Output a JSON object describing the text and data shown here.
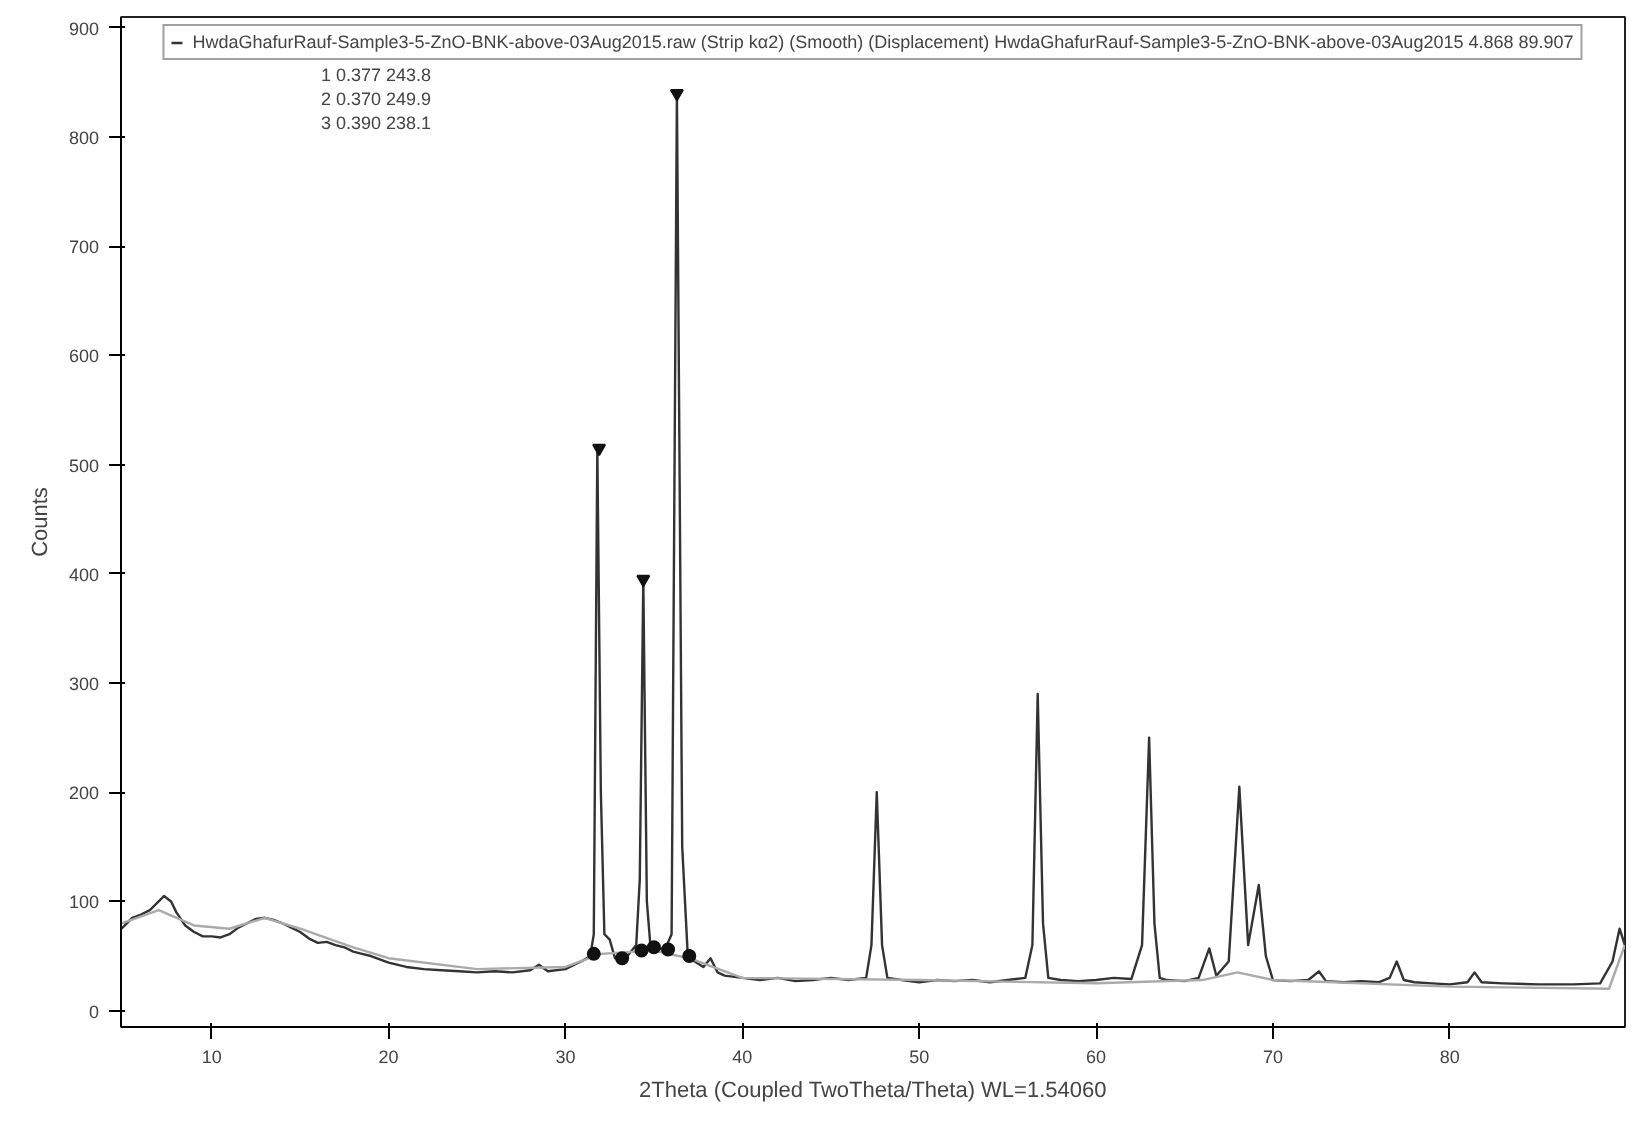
{
  "chart_data": {
    "type": "line",
    "xlabel": "2Theta (Coupled TwoTheta/Theta) WL=1.54060",
    "ylabel": "Counts",
    "xlim": [
      4.868,
      89.907
    ],
    "ylim": [
      -15,
      910
    ],
    "xticks": [
      10,
      20,
      30,
      40,
      50,
      60,
      70,
      80
    ],
    "yticks": [
      0,
      100,
      200,
      300,
      400,
      500,
      600,
      700,
      800,
      900
    ],
    "grid": false,
    "legend": "top",
    "annotations": [
      "1 0.377 243.8",
      "2 0.370 249.9",
      "3 0.390 238.1"
    ],
    "series": [
      {
        "name": "HwdaGhafurRauf-Sample3-5-ZnO-BNK-above-03Aug2015.raw (Strip kα2) (Smooth) (Displacement) HwdaGhafurRauf-Sample3-5-ZnO-BNK-above-03Aug2015 4.868 89.907",
        "color": "#333333",
        "x": [
          4.9,
          5.5,
          6,
          6.5,
          7,
          7.3,
          7.7,
          8,
          8.5,
          9,
          9.5,
          10,
          10.5,
          11,
          11.5,
          12,
          12.5,
          13,
          13.5,
          14,
          14.5,
          15,
          15.5,
          16,
          16.5,
          17,
          17.5,
          18,
          18.5,
          19,
          19.5,
          20,
          21,
          22,
          23,
          24,
          25,
          26,
          27,
          28,
          28.5,
          29,
          30,
          30.5,
          31,
          31.4,
          31.6,
          31.8,
          32.0,
          32.2,
          32.5,
          32.8,
          33.2,
          33.6,
          34.0,
          34.2,
          34.4,
          34.6,
          34.8,
          35.2,
          35.6,
          36.0,
          36.3,
          36.6,
          36.9,
          37.3,
          37.8,
          38.2,
          38.6,
          39,
          40,
          41,
          42,
          43,
          44,
          45,
          46,
          47,
          47.3,
          47.6,
          47.9,
          48.2,
          49,
          50,
          51,
          52,
          53,
          54,
          55,
          56,
          56.4,
          56.7,
          57.0,
          57.3,
          58,
          59,
          60,
          61,
          62,
          62.6,
          63.0,
          63.3,
          63.6,
          64,
          65,
          65.8,
          66.4,
          66.8,
          67.5,
          68.1,
          68.6,
          69.2,
          69.6,
          70,
          71,
          72,
          72.6,
          73,
          74,
          75,
          76,
          76.6,
          77,
          77.4,
          78,
          79,
          80,
          81,
          81.4,
          81.8,
          83,
          85,
          87,
          88.5,
          89.2,
          89.6,
          89.9
        ],
        "values": [
          75,
          85,
          88,
          92,
          100,
          105,
          100,
          90,
          78,
          72,
          68,
          68,
          67,
          70,
          76,
          80,
          84,
          85,
          83,
          80,
          76,
          72,
          66,
          62,
          63,
          60,
          58,
          54,
          52,
          50,
          47,
          44,
          40,
          38,
          37,
          36,
          35,
          36,
          35,
          37,
          42,
          36,
          38,
          42,
          46,
          50,
          70,
          515,
          200,
          70,
          65,
          48,
          45,
          52,
          60,
          120,
          395,
          100,
          60,
          58,
          55,
          70,
          840,
          150,
          55,
          45,
          40,
          48,
          35,
          32,
          30,
          28,
          30,
          27,
          28,
          30,
          28,
          30,
          60,
          200,
          60,
          30,
          28,
          26,
          28,
          27,
          28,
          26,
          28,
          30,
          60,
          290,
          80,
          30,
          28,
          27,
          28,
          30,
          29,
          60,
          250,
          80,
          30,
          28,
          27,
          30,
          57,
          32,
          45,
          205,
          60,
          115,
          50,
          28,
          27,
          28,
          36,
          27,
          26,
          27,
          26,
          30,
          45,
          28,
          26,
          25,
          24,
          26,
          35,
          26,
          25,
          24,
          24,
          25,
          45,
          75,
          60
        ]
      },
      {
        "color": "#aaaaaa",
        "x": [
          4.9,
          7,
          9,
          11,
          13,
          15,
          18,
          20,
          25,
          30,
          32,
          35,
          37,
          40,
          50,
          60,
          66,
          68,
          70,
          80,
          89,
          89.9
        ],
        "values": [
          80,
          92,
          78,
          75,
          85,
          75,
          58,
          48,
          38,
          40,
          52,
          55,
          48,
          30,
          28,
          25,
          28,
          35,
          28,
          22,
          20,
          60
        ]
      },
      {
        "type": "scatter",
        "marker": "circle",
        "color": "#111111",
        "x": [
          31.6,
          33.2,
          34.3,
          35.0,
          35.8,
          37.0
        ],
        "values": [
          52,
          48,
          55,
          58,
          56,
          50
        ]
      },
      {
        "type": "scatter",
        "marker": "triangle",
        "color": "#111111",
        "x": [
          31.9,
          34.4,
          36.3
        ],
        "values": [
          515,
          395,
          840
        ]
      }
    ]
  }
}
